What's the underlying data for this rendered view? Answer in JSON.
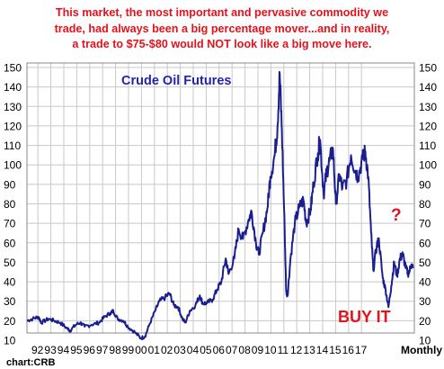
{
  "headline": {
    "line1": "This market, the most important and pervasive commodity we",
    "line2": "trade, had always been a big percentage mover...and in reality,",
    "line3": "a trade to $75-$80 would NOT look like a big move here."
  },
  "annotations": {
    "buy_it": "BUY IT",
    "question": "?",
    "credit": "chart:CRB"
  },
  "colors": {
    "headline": "#e3121b",
    "series": "#1a1e8e",
    "title": "#2224a8",
    "grid": "#c8c8c8"
  },
  "chart_data": {
    "type": "line",
    "title": "Crude Oil Futures",
    "xlabel": "Monthly",
    "ylabel": "",
    "ylim": [
      10,
      150
    ],
    "y_ticks": [
      10,
      20,
      30,
      40,
      50,
      60,
      70,
      80,
      90,
      100,
      110,
      120,
      130,
      140,
      150
    ],
    "x_tick_labels": [
      "92",
      "93",
      "94",
      "95",
      "96",
      "97",
      "98",
      "99",
      "00",
      "01",
      "02",
      "03",
      "04",
      "05",
      "06",
      "07",
      "08",
      "09",
      "10",
      "11",
      "12",
      "13",
      "14",
      "15",
      "16",
      "17"
    ],
    "grid": true,
    "series": [
      {
        "values": [
          [
            1991.0,
            20
          ],
          [
            1991.4,
            21
          ],
          [
            1991.8,
            22
          ],
          [
            1992.0,
            19
          ],
          [
            1992.5,
            21
          ],
          [
            1992.9,
            20
          ],
          [
            1993.3,
            19
          ],
          [
            1993.8,
            16
          ],
          [
            1994.0,
            15
          ],
          [
            1994.4,
            18
          ],
          [
            1994.7,
            19
          ],
          [
            1995.0,
            17
          ],
          [
            1995.5,
            18
          ],
          [
            1996.0,
            19
          ],
          [
            1996.4,
            22
          ],
          [
            1996.8,
            24
          ],
          [
            1997.0,
            25
          ],
          [
            1997.3,
            21
          ],
          [
            1997.7,
            20
          ],
          [
            1998.0,
            17
          ],
          [
            1998.5,
            14
          ],
          [
            1998.9,
            11
          ],
          [
            1999.2,
            12
          ],
          [
            1999.5,
            18
          ],
          [
            1999.9,
            25
          ],
          [
            2000.2,
            30
          ],
          [
            2000.6,
            32
          ],
          [
            2000.9,
            34
          ],
          [
            2001.2,
            28
          ],
          [
            2001.5,
            27
          ],
          [
            2001.8,
            21
          ],
          [
            2002.0,
            19
          ],
          [
            2002.3,
            25
          ],
          [
            2002.7,
            28
          ],
          [
            2003.0,
            33
          ],
          [
            2003.2,
            29
          ],
          [
            2003.5,
            29
          ],
          [
            2003.9,
            31
          ],
          [
            2004.2,
            36
          ],
          [
            2004.5,
            40
          ],
          [
            2004.8,
            52
          ],
          [
            2005.0,
            44
          ],
          [
            2005.4,
            52
          ],
          [
            2005.7,
            67
          ],
          [
            2006.0,
            62
          ],
          [
            2006.4,
            72
          ],
          [
            2006.6,
            76
          ],
          [
            2006.9,
            60
          ],
          [
            2007.1,
            54
          ],
          [
            2007.4,
            66
          ],
          [
            2007.7,
            78
          ],
          [
            2007.9,
            94
          ],
          [
            2008.2,
            105
          ],
          [
            2008.4,
            120
          ],
          [
            2008.55,
            147
          ],
          [
            2008.7,
            118
          ],
          [
            2008.9,
            65
          ],
          [
            2009.0,
            35
          ],
          [
            2009.1,
            33
          ],
          [
            2009.3,
            52
          ],
          [
            2009.6,
            70
          ],
          [
            2009.9,
            78
          ],
          [
            2010.2,
            82
          ],
          [
            2010.4,
            70
          ],
          [
            2010.7,
            77
          ],
          [
            2010.9,
            90
          ],
          [
            2011.2,
            106
          ],
          [
            2011.35,
            113
          ],
          [
            2011.6,
            85
          ],
          [
            2011.8,
            96
          ],
          [
            2012.0,
            102
          ],
          [
            2012.25,
            108
          ],
          [
            2012.45,
            80
          ],
          [
            2012.7,
            95
          ],
          [
            2012.9,
            88
          ],
          [
            2013.2,
            92
          ],
          [
            2013.5,
            105
          ],
          [
            2013.8,
            97
          ],
          [
            2014.0,
            94
          ],
          [
            2014.3,
            103
          ],
          [
            2014.5,
            107
          ],
          [
            2014.7,
            94
          ],
          [
            2014.9,
            65
          ],
          [
            2015.05,
            46
          ],
          [
            2015.3,
            59
          ],
          [
            2015.45,
            61
          ],
          [
            2015.7,
            42
          ],
          [
            2015.9,
            36
          ],
          [
            2016.1,
            27
          ],
          [
            2016.3,
            38
          ],
          [
            2016.5,
            50
          ],
          [
            2016.7,
            43
          ],
          [
            2016.9,
            52
          ],
          [
            2017.1,
            54
          ],
          [
            2017.3,
            47
          ],
          [
            2017.5,
            44
          ],
          [
            2017.7,
            49
          ],
          [
            2017.8,
            47
          ]
        ]
      }
    ]
  }
}
